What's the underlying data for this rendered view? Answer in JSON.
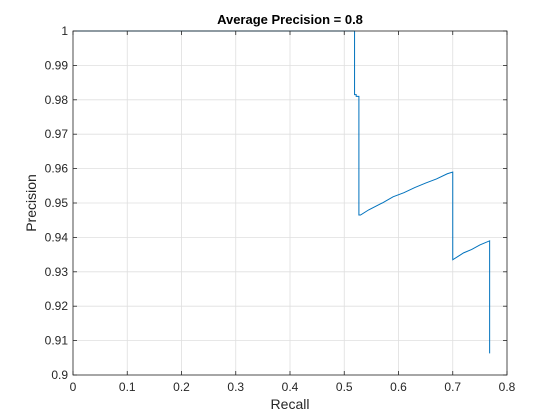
{
  "chart_data": {
    "type": "line",
    "title": "Average Precision = 0.8",
    "xlabel": "Recall",
    "ylabel": "Precision",
    "xlim": [
      0,
      0.8
    ],
    "ylim": [
      0.9,
      1.0
    ],
    "xticks": [
      "0",
      "0.1",
      "0.2",
      "0.3",
      "0.4",
      "0.5",
      "0.6",
      "0.7",
      "0.8"
    ],
    "yticks": [
      "0.9",
      "0.91",
      "0.92",
      "0.93",
      "0.94",
      "0.95",
      "0.96",
      "0.97",
      "0.98",
      "0.99",
      "1"
    ],
    "grid": true,
    "series": [
      {
        "color": "#0072BD",
        "x": [
          0,
          0.519,
          0.519,
          0.522,
          0.522,
          0.527,
          0.527,
          0.53,
          0.545,
          0.57,
          0.59,
          0.61,
          0.63,
          0.65,
          0.67,
          0.69,
          0.7,
          0.7,
          0.71,
          0.72,
          0.735,
          0.75,
          0.768,
          0.768
        ],
        "y": [
          1.0,
          1.0,
          0.9815,
          0.9815,
          0.981,
          0.981,
          0.9465,
          0.9465,
          0.948,
          0.95,
          0.9518,
          0.953,
          0.9545,
          0.9558,
          0.957,
          0.9585,
          0.959,
          0.9335,
          0.9345,
          0.9355,
          0.9365,
          0.9378,
          0.939,
          0.9063
        ]
      }
    ]
  }
}
